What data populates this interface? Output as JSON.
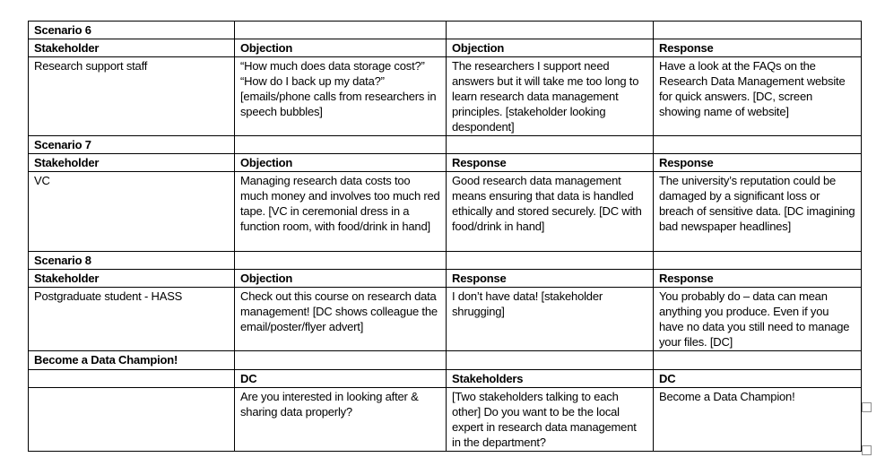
{
  "table": {
    "border_color": "#000000",
    "rows": [
      {
        "type": "section",
        "cells": [
          "Scenario 6",
          "",
          "",
          ""
        ]
      },
      {
        "type": "header",
        "cells": [
          "Stakeholder",
          "Objection",
          "Objection",
          "Response"
        ]
      },
      {
        "type": "body",
        "cells": [
          "Research support staff",
          "“How much does data storage cost?” “How do I back up my data?” [emails/phone calls from researchers in speech bubbles]",
          "The researchers I support need answers but it will take me too long to learn research data management principles. [stakeholder looking despondent]",
          "Have a look at the FAQs on the Research Data Management website for quick answers. [DC, screen showing name of website]"
        ]
      },
      {
        "type": "section",
        "cells": [
          "Scenario 7",
          "",
          "",
          ""
        ]
      },
      {
        "type": "header",
        "cells": [
          "Stakeholder",
          "Objection",
          "Response",
          "Response"
        ]
      },
      {
        "type": "body",
        "cells": [
          "VC",
          "Managing research data costs too much money and involves too much red tape. [VC in ceremonial dress in a function room, with food/drink in hand]",
          "Good research data management means ensuring that data is handled ethically and stored securely. [DC with food/drink in hand]",
          "The university’s reputation could be damaged by a significant loss or breach of sensitive data. [DC imagining bad newspaper headlines]"
        ]
      },
      {
        "type": "section",
        "cells": [
          "Scenario 8",
          "",
          "",
          ""
        ]
      },
      {
        "type": "header",
        "cells": [
          "Stakeholder",
          "Objection",
          "Response",
          "Response"
        ]
      },
      {
        "type": "body",
        "cells": [
          "Postgraduate student - HASS",
          "Check out this course on research data management! [DC shows colleague the email/poster/flyer advert]",
          "I don’t have data! [stakeholder shrugging]",
          "You probably do – data can mean anything you produce. Even if you have no data you still need to manage your files. [DC]"
        ]
      },
      {
        "type": "section",
        "cells": [
          "Become a Data Champion!",
          "",
          "",
          ""
        ]
      },
      {
        "type": "header",
        "cells": [
          "",
          "DC",
          "Stakeholders",
          "DC"
        ]
      },
      {
        "type": "body",
        "cells": [
          "",
          "Are you interested in looking after & sharing data properly?",
          "[Two stakeholders talking to each other] Do you want to be the local expert in research data management in the department?",
          "Become a Data Champion!"
        ]
      }
    ]
  },
  "markers": {
    "square_color": "#8f8f8f"
  }
}
